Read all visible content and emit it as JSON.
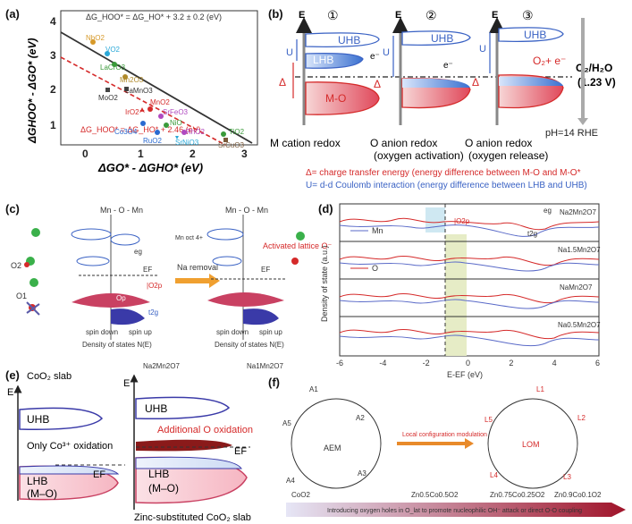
{
  "panels": {
    "a": {
      "label": "(a)",
      "fit_top": "ΔG_HOO* = ΔG_HO* + 3.2 ± 0.2 (eV)",
      "fit_bottom": "ΔG_HOO* = ΔG_HO* + 2.46 (eV)",
      "xlabel": "ΔGO* - ΔGHO* (eV)",
      "ylabel": "ΔGHOO* - ΔGO* (eV)",
      "xticks": [
        "0",
        "1",
        "2",
        "3"
      ],
      "yticks": [
        "1",
        "2",
        "3",
        "4"
      ],
      "points": [
        {
          "name": "NbO2",
          "color": "#d79a2a"
        },
        {
          "name": "VO2",
          "color": "#2aa8d8"
        },
        {
          "name": "LaCrO3",
          "color": "#3a9a3a"
        },
        {
          "name": "Mn2O3",
          "color": "#b08a2a"
        },
        {
          "name": "MoO2",
          "color": "#444444"
        },
        {
          "name": "LaMnO3",
          "color": "#444444"
        },
        {
          "name": "MnO2",
          "color": "#d52a2a"
        },
        {
          "name": "IrO2",
          "color": "#d52a2a"
        },
        {
          "name": "SrFeO3",
          "color": "#b04ac0"
        },
        {
          "name": "NiO",
          "color": "#3a9a3a"
        },
        {
          "name": "RhO2",
          "color": "#b04ac0"
        },
        {
          "name": "Co3O4",
          "color": "#2a6ad0"
        },
        {
          "name": "RuO2",
          "color": "#2a6ad0"
        },
        {
          "name": "SrNiO3",
          "color": "#2aa8d8"
        },
        {
          "name": "TiO2",
          "color": "#3a9a3a"
        },
        {
          "name": "SrCuO3",
          "color": "#7a5a3a"
        }
      ]
    },
    "b": {
      "label": "(b)",
      "steps": [
        "①",
        "②",
        "③"
      ],
      "axis_e": "E",
      "uhb": "UHB",
      "lhb": "LHB",
      "mo": "M-O",
      "u": "U",
      "delta": "Δ",
      "e_minus": "e⁻",
      "o2_release": "O₂+ e⁻",
      "o2_h2o": "O₂/H₂O",
      "potential": "(1.23 V)",
      "ph": "pH=14 RHE",
      "titles": [
        "M cation redox",
        "O anion redox",
        "O anion redox"
      ],
      "subtitles": [
        "",
        "(oxygen activation)",
        "(oxygen release)"
      ],
      "def_delta": "Δ= charge transfer energy (energy difference between M-O and M-O*",
      "def_u": "U= d-d Coulomb interaction (energy difference between LHB and UHB)"
    },
    "c": {
      "label": "(c)",
      "mn_o_mn": "Mn - O - Mn",
      "mn_oct": "Mn oct 4+",
      "o1": "O1",
      "o2": "O2",
      "eg": "eg",
      "t2g": "t2g",
      "ef": "EF",
      "o2p": "|O2p",
      "op": "Op",
      "na_removal": "Na removal",
      "activated": "Activated lattice O⁻",
      "spin_down": "spin down",
      "spin_up": "spin up",
      "dos": "Density of states N(E)"
    },
    "d": {
      "label": "(d)",
      "ylabel": "Density of state (a.u.)",
      "xlabel": "E-EF (eV)",
      "xticks": [
        "-6",
        "-4",
        "-2",
        "0",
        "2",
        "4",
        "6"
      ],
      "legend_mn": "Mn",
      "legend_o": "O",
      "o2p": "|O2p",
      "eg": "eg",
      "t2g": "t2g",
      "series": [
        "Na2Mn2O7",
        "Na1.5Mn2O7",
        "NaMn2O7",
        "Na0.5Mn2O7"
      ]
    },
    "e": {
      "label": "(e)",
      "left_title": "CoO₂ slab",
      "right_top_left": "Na2Mn2O7",
      "right_top_right": "Na1Mn2O7",
      "e_axis": "E",
      "uhb": "UHB",
      "lhb": "LHB",
      "mo": "(M–O)",
      "only_co": "Only Co³⁺ oxidation",
      "additional": "Additional O oxidation",
      "ef": "EF",
      "caption": "Zinc-substituted CoO₂ slab"
    },
    "f": {
      "label": "(f)",
      "aem": "AEM",
      "lom": "LOM",
      "modulation": "Local configuration modulation",
      "compositions": [
        "CoO2",
        "Zn0.5Co0.5O2",
        "Zn0.75Co0.25O2",
        "Zn0.9Co0.1O2"
      ],
      "bottom": "Introducing oxygen holes in O_lat to promote nucleophilic OH⁻ attack or direct O-O coupling",
      "steps_left": [
        "A1",
        "A2",
        "A3",
        "A4",
        "A5"
      ],
      "steps_right": [
        "L1",
        "L2",
        "L3",
        "L4",
        "L5"
      ]
    }
  }
}
